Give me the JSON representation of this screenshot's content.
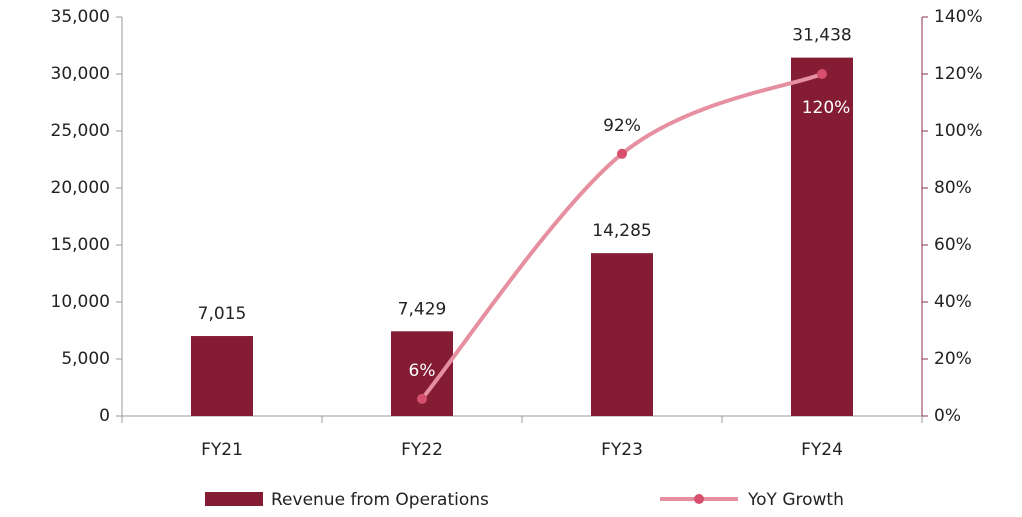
{
  "chart_data": {
    "type": "bar",
    "categories": [
      "FY21",
      "FY22",
      "FY23",
      "FY24"
    ],
    "series": [
      {
        "name": "Revenue from Operations",
        "type": "bar",
        "color": "#841c33",
        "values": [
          7015,
          7429,
          14285,
          31438
        ],
        "value_labels": [
          "7,015",
          "7,429",
          "14,285",
          "31,438"
        ]
      },
      {
        "name": "YoY Growth",
        "type": "line",
        "axis": "y2",
        "color": "#e68fa0",
        "marker_color": "#d6506e",
        "values": [
          null,
          6,
          92,
          120
        ],
        "value_labels": [
          null,
          "6%",
          "92%",
          "120%"
        ]
      }
    ],
    "ylim": [
      0,
      35000
    ],
    "yticks": [
      0,
      {
        "value": 5000,
        "label": "5,000"
      },
      {
        "value": 10000,
        "label": "10,000"
      },
      {
        "value": 15000,
        "label": "15,000"
      },
      {
        "value": 20000,
        "label": "20,000"
      },
      {
        "value": 25000,
        "label": "25,000"
      },
      {
        "value": 30000,
        "label": "30,000"
      },
      {
        "value": 35000,
        "label": "35,000"
      }
    ],
    "y2lim": [
      0,
      140
    ],
    "y2ticks": [
      {
        "value": 0,
        "label": "0%"
      },
      {
        "value": 20,
        "label": "20%"
      },
      {
        "value": 40,
        "label": "40%"
      },
      {
        "value": 60,
        "label": "60%"
      },
      {
        "value": 80,
        "label": "80%"
      },
      {
        "value": 100,
        "label": "100%"
      },
      {
        "value": 120,
        "label": "120%"
      },
      {
        "value": 140,
        "label": "140%"
      }
    ],
    "legend": "bottom"
  }
}
